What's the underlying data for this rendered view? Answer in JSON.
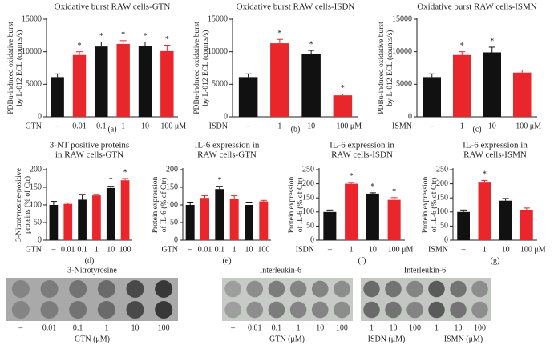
{
  "chart_data": [
    {
      "type": "bar",
      "title": [
        "Oxidative burst RAW cells-GTN"
      ],
      "ylabel": [
        "PDBu-induced oxidative burst",
        "by L-012 ECL (counts/s)"
      ],
      "xlabel": "GTN",
      "categories": [
        "–",
        "0.01",
        "0.1",
        "1",
        "10",
        "100 μM"
      ],
      "values": [
        6100,
        9500,
        10800,
        11200,
        10900,
        10100
      ],
      "errors": [
        500,
        500,
        700,
        500,
        600,
        900
      ],
      "colors": [
        "#111111",
        "#e8262b",
        "#111111",
        "#e8262b",
        "#111111",
        "#e8262b"
      ],
      "markers": [
        null,
        "*",
        "*",
        "*",
        "*",
        "*"
      ],
      "ylim": [
        0,
        15000
      ],
      "yticks": [
        0,
        5000,
        10000,
        15000
      ],
      "label": "(a)"
    },
    {
      "type": "bar",
      "title": [
        "Oxidative burst RAW cells-ISDN"
      ],
      "ylabel": [
        "PDBu-induced oxidative burst",
        "by L-012 ECL (counts/s)"
      ],
      "xlabel": "ISDN",
      "categories": [
        "–",
        "1",
        "10",
        "100 μM"
      ],
      "values": [
        6100,
        11300,
        9600,
        3300
      ],
      "errors": [
        500,
        600,
        600,
        200
      ],
      "colors": [
        "#111111",
        "#e8262b",
        "#111111",
        "#e8262b"
      ],
      "markers": [
        null,
        "*",
        "*",
        "*"
      ],
      "ylim": [
        0,
        15000
      ],
      "yticks": [
        0,
        5000,
        10000,
        15000
      ],
      "label": "(b)"
    },
    {
      "type": "bar",
      "title": [
        "Oxidative burst RAW cells-ISMN"
      ],
      "ylabel": [
        "PDBu-induced oxidative burst",
        "by L-012 ECL (counts/s)"
      ],
      "xlabel": "ISMN",
      "categories": [
        "–",
        "1",
        "10",
        "100 μM"
      ],
      "values": [
        6100,
        9500,
        9900,
        6800
      ],
      "errors": [
        500,
        500,
        800,
        400
      ],
      "colors": [
        "#111111",
        "#e8262b",
        "#111111",
        "#e8262b"
      ],
      "markers": [
        null,
        "*",
        "*",
        null
      ],
      "ylim": [
        0,
        15000
      ],
      "yticks": [
        0,
        5000,
        10000,
        15000
      ],
      "label": "(c)"
    },
    {
      "type": "bar",
      "title": [
        "3-NT positive proteins",
        "in RAW cells-GTN"
      ],
      "ylabel": [
        "3-Nitrotyrosine-positive",
        "proteins (% of Ctr)"
      ],
      "xlabel": "GTN",
      "categories": [
        "–",
        "0.01",
        "0.1",
        "1",
        "10",
        "100"
      ],
      "values": [
        100,
        103,
        115,
        127,
        148,
        170
      ],
      "errors": [
        10,
        3,
        15,
        3,
        5,
        5
      ],
      "colors": [
        "#111111",
        "#e8262b",
        "#111111",
        "#e8262b",
        "#111111",
        "#e8262b"
      ],
      "markers": [
        null,
        null,
        null,
        null,
        "*",
        "*"
      ],
      "ylim": [
        0,
        200
      ],
      "yticks": [
        0,
        50,
        100,
        150,
        200
      ],
      "label": "(d)"
    },
    {
      "type": "bar",
      "title": [
        "IL-6 expression in",
        "RAW cells-GTN"
      ],
      "ylabel": [
        "Protein expression",
        "of IL-6 (% of Ctr)"
      ],
      "xlabel": "GTN",
      "categories": [
        "–",
        "0.01",
        "0.1",
        "1",
        "10",
        "100"
      ],
      "values": [
        100,
        120,
        145,
        118,
        100,
        110
      ],
      "errors": [
        8,
        6,
        8,
        8,
        8,
        3
      ],
      "colors": [
        "#111111",
        "#e8262b",
        "#111111",
        "#e8262b",
        "#111111",
        "#e8262b"
      ],
      "markers": [
        null,
        null,
        "*",
        null,
        null,
        null
      ],
      "ylim": [
        0,
        200
      ],
      "yticks": [
        0,
        50,
        100,
        150,
        200
      ],
      "label": "(e)"
    },
    {
      "type": "bar",
      "title": [
        "IL-6 expression in",
        "RAW cells-ISDN"
      ],
      "ylabel": [
        "Protein expression",
        "of IL-6 (% of Ctr)"
      ],
      "xlabel": "ISDN",
      "categories": [
        "–",
        "1",
        "10",
        "100 μM"
      ],
      "values": [
        100,
        200,
        165,
        143
      ],
      "errors": [
        7,
        5,
        3,
        8
      ],
      "colors": [
        "#111111",
        "#e8262b",
        "#111111",
        "#e8262b"
      ],
      "markers": [
        null,
        "*",
        "*",
        "*"
      ],
      "ylim": [
        0,
        250
      ],
      "yticks": [
        0,
        50,
        100,
        150,
        200,
        250
      ],
      "label": "(f)"
    },
    {
      "type": "bar",
      "title": [
        "IL-6 expression in",
        "RAW cells-ISMN"
      ],
      "ylabel": [
        "Protein expression",
        "of IL-6 (% of Ctr)"
      ],
      "xlabel": "ISMN",
      "categories": [
        "–",
        "1",
        "10",
        "100 μM"
      ],
      "values": [
        100,
        207,
        140,
        108
      ],
      "errors": [
        7,
        5,
        8,
        6
      ],
      "colors": [
        "#111111",
        "#e8262b",
        "#111111",
        "#e8262b"
      ],
      "markers": [
        null,
        "*",
        null,
        null
      ],
      "ylim": [
        0,
        250
      ],
      "yticks": [
        0,
        50,
        100,
        150,
        200,
        250
      ],
      "label": "(g)"
    }
  ],
  "blots": [
    {
      "title": "3-Nitrotyrosine",
      "labels": [
        "–",
        "0.01",
        "0.1",
        "1",
        "10",
        "100"
      ],
      "xlabels": [
        "GTN (μM)"
      ]
    },
    {
      "title": "Interleukin-6",
      "labels": [
        "–",
        "0.01",
        "0.1",
        "1",
        "10",
        "100"
      ],
      "xlabels": [
        "GTN (μM)"
      ]
    },
    {
      "title": "Interleukin-6",
      "labels": [
        "1",
        "10",
        "100",
        "1",
        "10",
        "100"
      ],
      "xlabels": [
        "ISDN (μM)",
        "ISMN (μM)"
      ]
    }
  ]
}
